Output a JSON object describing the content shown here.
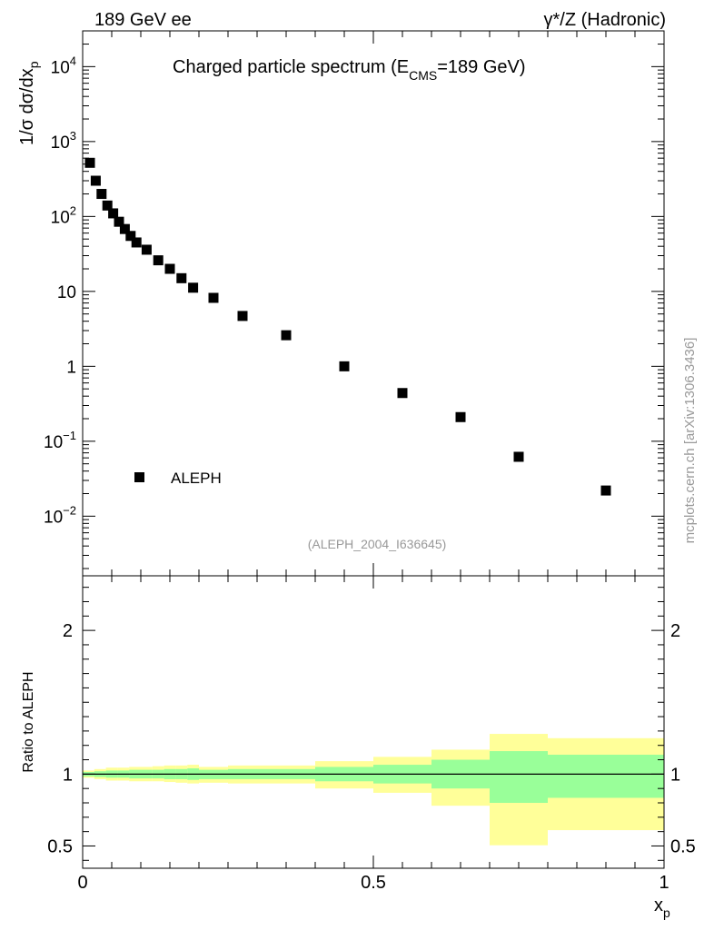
{
  "header": {
    "left": "189 GeV ee",
    "right": "γ*/Z (Hadronic)"
  },
  "side_note": "mcplots.cern.ch [arXiv:1306.3436]",
  "colors": {
    "band_outer": "#ffff99",
    "band_inner": "#99ff99",
    "marker": "#000000",
    "ref_line": "#000000",
    "analysis_tag": "#999999"
  },
  "chart_data": [
    {
      "type": "scatter",
      "title": "Charged particle spectrum (E",
      "title_sub": "CMS",
      "title_suffix": "=189 GeV)",
      "ylabel_pre": "1/σ  dσ/dx",
      "ylabel_sub": "p",
      "yscale": "log",
      "xlim": [
        0,
        1
      ],
      "ylim": [
        0.0016,
        30000
      ],
      "y_ticks": [
        {
          "value": 10000,
          "base": "10",
          "exp": "4"
        },
        {
          "value": 1000,
          "base": "10",
          "exp": "3"
        },
        {
          "value": 100,
          "base": "10",
          "exp": "2"
        },
        {
          "value": 10,
          "base": "10",
          "exp": ""
        },
        {
          "value": 1,
          "base": "1",
          "exp": ""
        },
        {
          "value": 0.1,
          "base": "10",
          "exp": "−1"
        },
        {
          "value": 0.01,
          "base": "10",
          "exp": "−2"
        }
      ],
      "legend": {
        "label": "ALEPH",
        "position": "lower-left"
      },
      "analysis": "(ALEPH_2004_I636645)",
      "series": [
        {
          "name": "ALEPH",
          "x": [
            0.0125,
            0.0225,
            0.0325,
            0.0425,
            0.0525,
            0.0625,
            0.0725,
            0.0825,
            0.0925,
            0.11,
            0.13,
            0.15,
            0.17,
            0.19,
            0.225,
            0.275,
            0.35,
            0.45,
            0.55,
            0.65,
            0.75,
            0.9
          ],
          "y": [
            520,
            300,
            200,
            140,
            110,
            85,
            68,
            55,
            45,
            36,
            26,
            20,
            15,
            11.2,
            8.2,
            4.7,
            2.6,
            1.0,
            0.44,
            0.21,
            0.062,
            0.022
          ]
        }
      ]
    },
    {
      "type": "area",
      "ylabel": "Ratio to ALEPH",
      "xlabel": "x",
      "xlabel_sub": "p",
      "xlim": [
        0,
        1
      ],
      "ylim": [
        0.345,
        2.38
      ],
      "y_tick_labels": [
        {
          "value": 2,
          "label": "2"
        },
        {
          "value": 1,
          "label": "1"
        },
        {
          "value": 0.5,
          "label": "0.5"
        }
      ],
      "x_tick_labels": [
        {
          "value": 0,
          "label": "0"
        },
        {
          "value": 0.5,
          "label": "0.5"
        },
        {
          "value": 1,
          "label": "1"
        }
      ],
      "reference": 1,
      "bands": [
        {
          "x0": 0.0,
          "x1": 0.02,
          "lo2": 0.975,
          "hi2": 1.025,
          "lo1": 0.985,
          "hi1": 1.015
        },
        {
          "x0": 0.02,
          "x1": 0.04,
          "lo2": 0.965,
          "hi2": 1.035,
          "lo1": 0.98,
          "hi1": 1.02
        },
        {
          "x0": 0.04,
          "x1": 0.06,
          "lo2": 0.955,
          "hi2": 1.045,
          "lo1": 0.975,
          "hi1": 1.025
        },
        {
          "x0": 0.06,
          "x1": 0.08,
          "lo2": 0.955,
          "hi2": 1.045,
          "lo1": 0.975,
          "hi1": 1.025
        },
        {
          "x0": 0.08,
          "x1": 0.1,
          "lo2": 0.95,
          "hi2": 1.05,
          "lo1": 0.97,
          "hi1": 1.03
        },
        {
          "x0": 0.1,
          "x1": 0.12,
          "lo2": 0.95,
          "hi2": 1.05,
          "lo1": 0.97,
          "hi1": 1.03
        },
        {
          "x0": 0.12,
          "x1": 0.14,
          "lo2": 0.95,
          "hi2": 1.055,
          "lo1": 0.97,
          "hi1": 1.03
        },
        {
          "x0": 0.14,
          "x1": 0.16,
          "lo2": 0.945,
          "hi2": 1.06,
          "lo1": 0.965,
          "hi1": 1.035
        },
        {
          "x0": 0.16,
          "x1": 0.18,
          "lo2": 0.94,
          "hi2": 1.06,
          "lo1": 0.965,
          "hi1": 1.035
        },
        {
          "x0": 0.18,
          "x1": 0.2,
          "lo2": 0.935,
          "hi2": 1.065,
          "lo1": 0.96,
          "hi1": 1.04
        },
        {
          "x0": 0.2,
          "x1": 0.25,
          "lo2": 0.94,
          "hi2": 1.05,
          "lo1": 0.965,
          "hi1": 1.03
        },
        {
          "x0": 0.25,
          "x1": 0.3,
          "lo2": 0.935,
          "hi2": 1.06,
          "lo1": 0.965,
          "hi1": 1.035
        },
        {
          "x0": 0.3,
          "x1": 0.4,
          "lo2": 0.935,
          "hi2": 1.06,
          "lo1": 0.965,
          "hi1": 1.035
        },
        {
          "x0": 0.4,
          "x1": 0.5,
          "lo2": 0.9,
          "hi2": 1.09,
          "lo1": 0.95,
          "hi1": 1.05
        },
        {
          "x0": 0.5,
          "x1": 0.6,
          "lo2": 0.87,
          "hi2": 1.12,
          "lo1": 0.935,
          "hi1": 1.065
        },
        {
          "x0": 0.6,
          "x1": 0.7,
          "lo2": 0.78,
          "hi2": 1.17,
          "lo1": 0.9,
          "hi1": 1.1
        },
        {
          "x0": 0.7,
          "x1": 0.8,
          "lo2": 0.505,
          "hi2": 1.28,
          "lo1": 0.8,
          "hi1": 1.16
        },
        {
          "x0": 0.8,
          "x1": 1.0,
          "lo2": 0.61,
          "hi2": 1.25,
          "lo1": 0.835,
          "hi1": 1.135
        }
      ]
    }
  ]
}
